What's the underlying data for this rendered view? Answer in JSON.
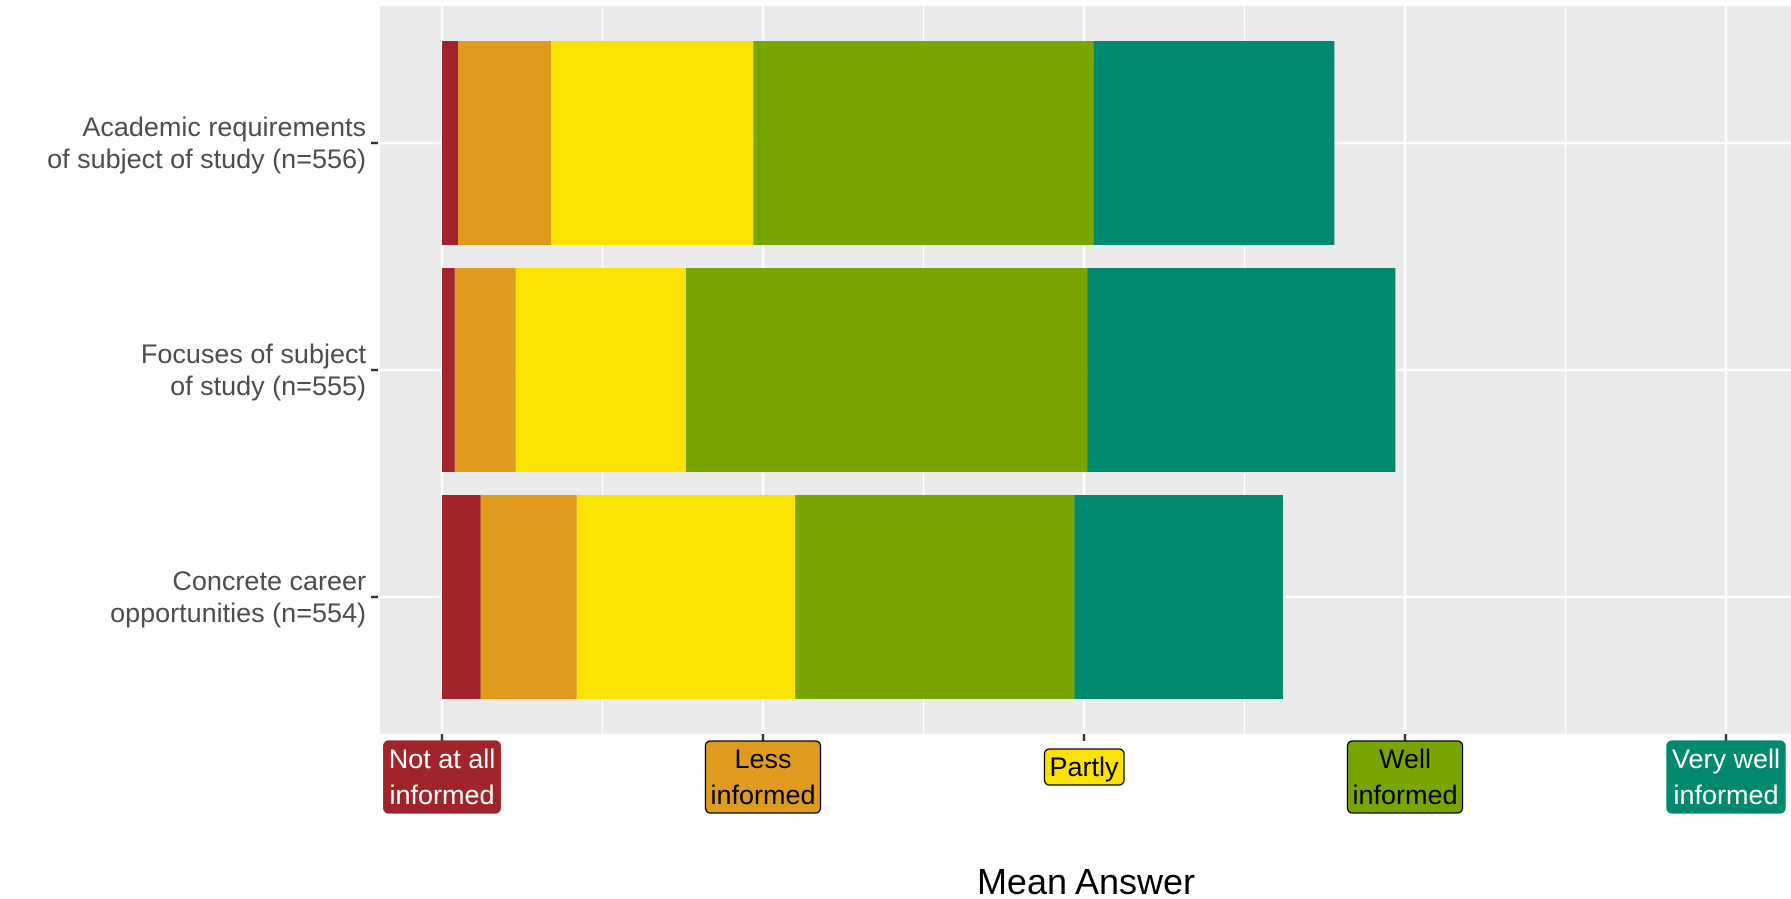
{
  "chart_data": {
    "type": "bar",
    "orientation": "horizontal",
    "stacked": true,
    "xlabel": "Mean Answer",
    "xlim": [
      0.8,
      5.2
    ],
    "x_ticks": [
      1,
      2,
      3,
      4,
      5
    ],
    "x_tick_labels": [
      {
        "lines": [
          "Not at all",
          "informed"
        ],
        "fill": "#A0242A",
        "text_color": "#ffffff"
      },
      {
        "lines": [
          "Less",
          "informed"
        ],
        "fill": "#DF9B1D",
        "text_color": "#000000"
      },
      {
        "lines": [
          "Partly"
        ],
        "fill": "#FAE300",
        "text_color": "#000000"
      },
      {
        "lines": [
          "Well",
          "informed"
        ],
        "fill": "#78A500",
        "text_color": "#000000"
      },
      {
        "lines": [
          "Very well",
          "informed"
        ],
        "fill": "#00896C",
        "text_color": "#ffffff"
      }
    ],
    "segment_colors": [
      "#A0242A",
      "#DF9B1D",
      "#FAE300",
      "#78A500",
      "#00896C"
    ],
    "categories": [
      {
        "lines": [
          "Academic requirements",
          "of subject of study (n=556)"
        ],
        "bounds": [
          1.0,
          1.05,
          1.34,
          1.97,
          3.03,
          3.78
        ]
      },
      {
        "lines": [
          "Focuses of subject",
          "of study (n=555)"
        ],
        "bounds": [
          1.0,
          1.04,
          1.23,
          1.76,
          3.01,
          3.97
        ]
      },
      {
        "lines": [
          "Concrete career",
          "opportunities (n=554)"
        ],
        "bounds": [
          1.0,
          1.12,
          1.42,
          2.1,
          2.97,
          3.62
        ]
      }
    ],
    "grid": true,
    "legend": "none"
  }
}
